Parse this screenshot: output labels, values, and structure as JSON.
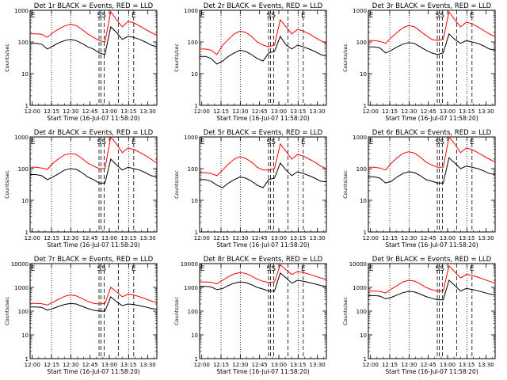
{
  "chart_data": [
    {
      "type": "line",
      "title": "Det 1r BLACK = Events, RED = LLD",
      "xlabel": "Start Time (16-Jul-07 11:58:20)",
      "ylabel": "Counts/sec",
      "ylim": [
        1,
        1000
      ],
      "xticks": [
        "12:00",
        "12:15",
        "12:30",
        "12:45",
        "13:00",
        "13:15",
        "13:30"
      ],
      "yticks": [
        "1",
        "10",
        "100",
        "1000"
      ],
      "annotations": [
        "E",
        "SS",
        "E"
      ],
      "series": [
        {
          "name": "Events",
          "color": "#000000",
          "values": [
            90,
            90,
            85,
            60,
            75,
            95,
            110,
            120,
            110,
            90,
            70,
            60,
            45,
            40,
            300,
            200,
            120,
            150,
            140,
            120,
            100,
            80,
            70
          ]
        },
        {
          "name": "LLD",
          "color": "#ff0000",
          "values": [
            180,
            180,
            175,
            140,
            200,
            260,
            320,
            360,
            330,
            250,
            180,
            140,
            110,
            100,
            900,
            500,
            300,
            450,
            400,
            320,
            250,
            200,
            160
          ]
        }
      ]
    },
    {
      "type": "line",
      "title": "Det 2r BLACK = Events, RED = LLD",
      "xlabel": "Start Time (16-Jul-07 11:58:20)",
      "ylabel": "Counts/sec",
      "ylim": [
        1,
        1000
      ],
      "xticks": [
        "12:00",
        "12:15",
        "12:30",
        "12:45",
        "13:00",
        "13:15",
        "13:30"
      ],
      "yticks": [
        "1",
        "10",
        "100",
        "1000"
      ],
      "annotations": [
        "E",
        "SS",
        "E"
      ],
      "series": [
        {
          "name": "Events",
          "color": "#000000",
          "values": [
            35,
            35,
            30,
            20,
            25,
            35,
            45,
            55,
            50,
            40,
            30,
            25,
            45,
            50,
            150,
            80,
            60,
            80,
            70,
            60,
            50,
            40,
            35
          ]
        },
        {
          "name": "LLD",
          "color": "#ff0000",
          "values": [
            60,
            60,
            55,
            40,
            80,
            120,
            180,
            220,
            200,
            150,
            100,
            80,
            70,
            80,
            500,
            300,
            180,
            250,
            220,
            180,
            140,
            110,
            90
          ]
        }
      ]
    },
    {
      "type": "line",
      "title": "Det 3r BLACK = Events, RED = LLD",
      "xlabel": "Start Time (16-Jul-07 11:58:20)",
      "ylabel": "Counts/sec",
      "ylim": [
        1,
        1000
      ],
      "xticks": [
        "12:00",
        "12:15",
        "12:30",
        "12:45",
        "13:00",
        "13:15",
        "13:30"
      ],
      "yticks": [
        "1",
        "10",
        "100",
        "1000"
      ],
      "annotations": [
        "E",
        "SS",
        "E"
      ],
      "series": [
        {
          "name": "Events",
          "color": "#000000",
          "values": [
            70,
            70,
            65,
            45,
            55,
            70,
            85,
            95,
            90,
            70,
            55,
            45,
            40,
            45,
            180,
            120,
            90,
            110,
            100,
            90,
            75,
            60,
            55
          ]
        },
        {
          "name": "LLD",
          "color": "#ff0000",
          "values": [
            110,
            110,
            105,
            90,
            140,
            200,
            280,
            330,
            300,
            220,
            160,
            120,
            110,
            120,
            900,
            500,
            300,
            420,
            380,
            300,
            230,
            180,
            150
          ]
        }
      ]
    },
    {
      "type": "line",
      "title": "Det 4r BLACK = Events, RED = LLD",
      "xlabel": "Start Time (16-Jul-07 11:58:20)",
      "ylabel": "Counts/sec",
      "ylim": [
        1,
        1000
      ],
      "xticks": [
        "12:00",
        "12:15",
        "12:30",
        "12:45",
        "13:00",
        "13:15",
        "13:30"
      ],
      "yticks": [
        "1",
        "10",
        "100",
        "1000"
      ],
      "annotations": [
        "E",
        "SS",
        "E"
      ],
      "series": [
        {
          "name": "Events",
          "color": "#000000",
          "values": [
            65,
            65,
            60,
            45,
            55,
            70,
            90,
            100,
            95,
            75,
            55,
            45,
            35,
            35,
            200,
            130,
            90,
            110,
            100,
            90,
            75,
            60,
            55
          ]
        },
        {
          "name": "LLD",
          "color": "#ff0000",
          "values": [
            110,
            110,
            105,
            95,
            150,
            210,
            270,
            300,
            280,
            210,
            150,
            120,
            100,
            100,
            1000,
            600,
            320,
            450,
            400,
            330,
            260,
            200,
            150
          ]
        }
      ]
    },
    {
      "type": "line",
      "title": "Det 5r BLACK = Events, RED = LLD",
      "xlabel": "Start Time (16-Jul-07 11:58:20)",
      "ylabel": "Counts/sec",
      "ylim": [
        1,
        1000
      ],
      "xticks": [
        "12:00",
        "12:15",
        "12:30",
        "12:45",
        "13:00",
        "13:15",
        "13:30"
      ],
      "yticks": [
        "1",
        "10",
        "100",
        "1000"
      ],
      "annotations": [
        "E",
        "SS",
        "E"
      ],
      "series": [
        {
          "name": "Events",
          "color": "#000000",
          "values": [
            45,
            45,
            40,
            30,
            25,
            35,
            45,
            55,
            50,
            40,
            30,
            25,
            45,
            50,
            150,
            90,
            60,
            80,
            70,
            60,
            50,
            40,
            38
          ]
        },
        {
          "name": "LLD",
          "color": "#ff0000",
          "values": [
            75,
            75,
            70,
            60,
            90,
            140,
            200,
            240,
            210,
            160,
            110,
            90,
            90,
            100,
            600,
            350,
            200,
            280,
            250,
            200,
            160,
            120,
            100
          ]
        }
      ]
    },
    {
      "type": "line",
      "title": "Det 6r BLACK = Events, RED = LLD",
      "xlabel": "Start Time (16-Jul-07 11:58:20)",
      "ylabel": "Counts/sec",
      "ylim": [
        1,
        1000
      ],
      "xticks": [
        "12:00",
        "12:15",
        "12:30",
        "12:45",
        "13:00",
        "13:15",
        "13:30"
      ],
      "yticks": [
        "1",
        "10",
        "100",
        "1000"
      ],
      "annotations": [
        "E",
        "SS",
        "E"
      ],
      "series": [
        {
          "name": "Events",
          "color": "#000000",
          "values": [
            55,
            55,
            50,
            35,
            40,
            55,
            70,
            80,
            75,
            60,
            45,
            40,
            35,
            35,
            220,
            150,
            100,
            120,
            110,
            100,
            85,
            70,
            65
          ]
        },
        {
          "name": "LLD",
          "color": "#ff0000",
          "values": [
            110,
            110,
            105,
            90,
            150,
            220,
            300,
            340,
            310,
            230,
            160,
            130,
            110,
            110,
            1000,
            600,
            320,
            450,
            400,
            320,
            250,
            200,
            160
          ]
        }
      ]
    },
    {
      "type": "line",
      "title": "Det 7r BLACK = Events, RED = LLD",
      "xlabel": "Start Time (16-Jul-07 11:58:20)",
      "ylabel": "Counts/sec",
      "ylim": [
        1,
        10000
      ],
      "xticks": [
        "12:00",
        "12:15",
        "12:30",
        "12:45",
        "13:00",
        "13:15",
        "13:30"
      ],
      "yticks": [
        "1",
        "10",
        "100",
        "1000",
        "10000"
      ],
      "annotations": [
        "E",
        "SS",
        "E"
      ],
      "series": [
        {
          "name": "Events",
          "color": "#000000",
          "values": [
            150,
            150,
            145,
            110,
            130,
            160,
            190,
            210,
            200,
            160,
            130,
            110,
            100,
            100,
            400,
            250,
            170,
            200,
            190,
            170,
            150,
            130,
            120
          ]
        },
        {
          "name": "LLD",
          "color": "#ff0000",
          "values": [
            210,
            210,
            205,
            180,
            240,
            320,
            420,
            480,
            440,
            340,
            260,
            210,
            200,
            210,
            1000,
            650,
            400,
            520,
            480,
            400,
            330,
            270,
            230
          ]
        }
      ]
    },
    {
      "type": "line",
      "title": "Det 8r BLACK = Events, RED = LLD",
      "xlabel": "Start Time (16-Jul-07 11:58:20)",
      "ylabel": "Counts/sec",
      "ylim": [
        1,
        10000
      ],
      "xticks": [
        "12:00",
        "12:15",
        "12:30",
        "12:45",
        "13:00",
        "13:15",
        "13:30"
      ],
      "yticks": [
        "1",
        "10",
        "100",
        "1000",
        "10000"
      ],
      "annotations": [
        "E",
        "SS",
        "E"
      ],
      "series": [
        {
          "name": "Events",
          "color": "#000000",
          "values": [
            1100,
            1100,
            1050,
            800,
            900,
            1200,
            1500,
            1700,
            1600,
            1300,
            1000,
            850,
            700,
            700,
            4000,
            2500,
            1500,
            2000,
            1800,
            1600,
            1400,
            1200,
            1100
          ]
        },
        {
          "name": "LLD",
          "color": "#ff0000",
          "values": [
            1700,
            1700,
            1650,
            1400,
            2000,
            2800,
            3700,
            4200,
            3900,
            3000,
            2200,
            1800,
            1600,
            1700,
            9000,
            5500,
            3500,
            4600,
            4200,
            3600,
            3000,
            2500,
            2200
          ]
        }
      ]
    },
    {
      "type": "line",
      "title": "Det 9r BLACK = Events, RED = LLD",
      "xlabel": "Start Time (16-Jul-07 11:58:20)",
      "ylabel": "Counts/sec",
      "ylim": [
        1,
        10000
      ],
      "xticks": [
        "12:00",
        "12:15",
        "12:30",
        "12:45",
        "13:00",
        "13:15",
        "13:30"
      ],
      "yticks": [
        "1",
        "10",
        "100",
        "1000",
        "10000"
      ],
      "annotations": [
        "E",
        "SS",
        "E"
      ],
      "series": [
        {
          "name": "Events",
          "color": "#000000",
          "values": [
            450,
            450,
            430,
            330,
            380,
            480,
            600,
            680,
            640,
            520,
            410,
            350,
            300,
            300,
            2000,
            1200,
            700,
            900,
            820,
            720,
            620,
            530,
            480
          ]
        },
        {
          "name": "LLD",
          "color": "#ff0000",
          "values": [
            700,
            700,
            680,
            580,
            850,
            1200,
            1700,
            2000,
            1850,
            1400,
            1000,
            800,
            700,
            720,
            8000,
            4500,
            2500,
            3500,
            3200,
            2700,
            2200,
            1800,
            1500
          ]
        }
      ]
    }
  ]
}
